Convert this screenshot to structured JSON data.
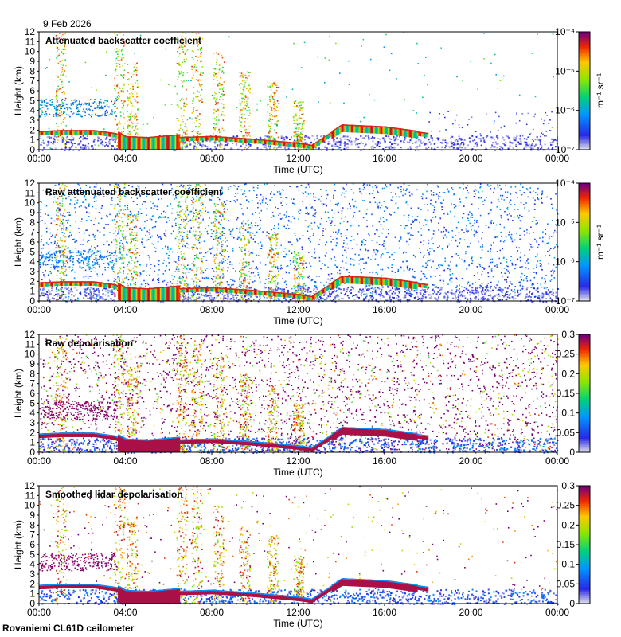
{
  "date": "9 Feb 2026",
  "footer": "Rovaniemi CL61D ceilometer",
  "time_ticks": [
    "00:00",
    "04:00",
    "08:00",
    "12:00",
    "16:00",
    "20:00",
    "00:00"
  ],
  "height_ticks": [
    "0",
    "1",
    "2",
    "3",
    "4",
    "5",
    "6",
    "7",
    "8",
    "9",
    "10",
    "11",
    "12"
  ],
  "chart_data": [
    {
      "type": "heatmap",
      "title": "Attenuated backscatter coefficient",
      "xlabel": "Time (UTC)",
      "ylabel": "Height (km)",
      "ylim": [
        0,
        12
      ],
      "xlim": [
        "00:00",
        "24:00"
      ],
      "colorbar": {
        "scale": "log",
        "min": 1e-07,
        "max": 0.0001,
        "unit": "m⁻¹ sr⁻¹",
        "ticks": [
          "10⁻⁷",
          "10⁻⁶",
          "10⁻⁵",
          "10⁻⁴"
        ]
      }
    },
    {
      "type": "heatmap",
      "title": "Raw attenuated backscatter coefficient",
      "xlabel": "Time (UTC)",
      "ylabel": "Height (km)",
      "ylim": [
        0,
        12
      ],
      "xlim": [
        "00:00",
        "24:00"
      ],
      "colorbar": {
        "scale": "log",
        "min": 1e-07,
        "max": 0.0001,
        "unit": "m⁻¹ sr⁻¹",
        "ticks": [
          "10⁻⁷",
          "10⁻⁶",
          "10⁻⁵",
          "10⁻⁴"
        ]
      }
    },
    {
      "type": "heatmap",
      "title": "Raw depolarisation",
      "xlabel": "Time (UTC)",
      "ylabel": "Height (km)",
      "ylim": [
        0,
        12
      ],
      "xlim": [
        "00:00",
        "24:00"
      ],
      "colorbar": {
        "scale": "linear",
        "min": 0,
        "max": 0.3,
        "unit": "",
        "ticks": [
          "0",
          "0.05",
          "0.1",
          "0.15",
          "0.2",
          "0.25",
          "0.3"
        ]
      }
    },
    {
      "type": "heatmap",
      "title": "Smoothed lidar depolarisation",
      "xlabel": "Time (UTC)",
      "ylabel": "Height (km)",
      "ylim": [
        0,
        12
      ],
      "xlim": [
        "00:00",
        "24:00"
      ],
      "colorbar": {
        "scale": "linear",
        "min": 0,
        "max": 0.3,
        "unit": "",
        "ticks": [
          "0",
          "0.05",
          "0.1",
          "0.15",
          "0.2",
          "0.25",
          "0.3"
        ]
      }
    }
  ],
  "features": {
    "cloud_layer": [
      [
        0.0,
        1.8
      ],
      [
        1.0,
        1.9
      ],
      [
        2.5,
        1.9
      ],
      [
        3.5,
        1.6
      ],
      [
        4.0,
        1.0
      ],
      [
        5.0,
        0.9
      ],
      [
        6.5,
        1.2
      ],
      [
        8.0,
        1.3
      ],
      [
        10.0,
        1.0
      ],
      [
        12.0,
        0.6
      ],
      [
        12.6,
        0.4
      ],
      [
        14.0,
        2.4
      ],
      [
        16.0,
        2.2
      ],
      [
        17.0,
        1.9
      ],
      [
        18.0,
        1.6
      ]
    ],
    "precip_columns": [
      [
        1.0,
        12
      ],
      [
        3.7,
        12
      ],
      [
        4.3,
        9
      ],
      [
        6.6,
        12
      ],
      [
        7.3,
        12
      ],
      [
        8.3,
        10
      ],
      [
        9.5,
        8
      ],
      [
        10.8,
        7
      ],
      [
        12.0,
        5
      ]
    ]
  }
}
